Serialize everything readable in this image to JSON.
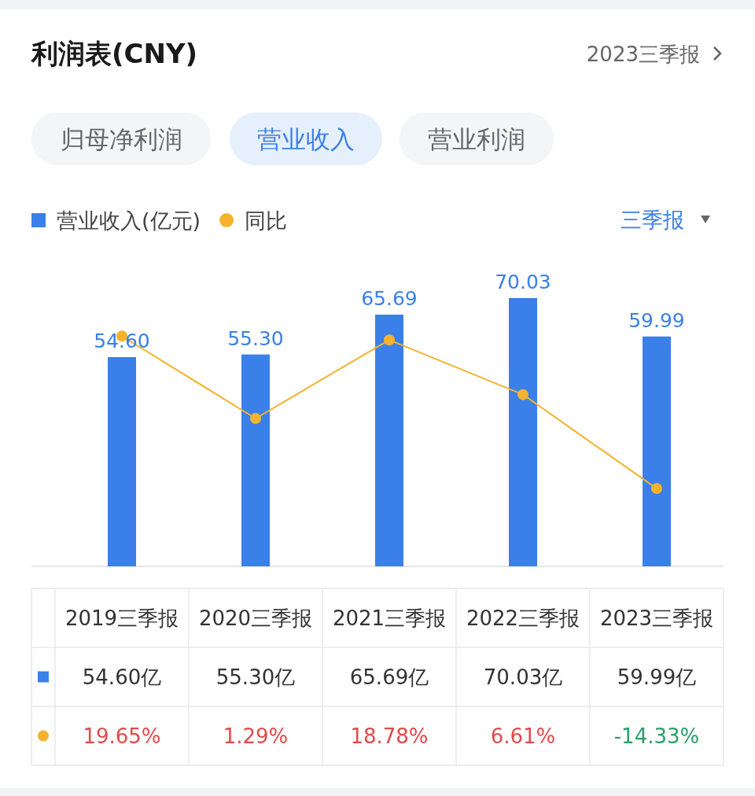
{
  "chart_data": {
    "type": "bar",
    "title": "利润表(CNY)",
    "categories": [
      "2019三季报",
      "2020三季报",
      "2021三季报",
      "2022三季报",
      "2023三季报"
    ],
    "series": [
      {
        "name": "营业收入(亿元)",
        "color": "#3a80e8",
        "values": [
          54.6,
          55.3,
          65.69,
          70.03,
          59.99
        ],
        "value_labels": [
          "54.60亿",
          "55.30亿",
          "65.69亿",
          "70.03亿",
          "59.99亿"
        ]
      },
      {
        "name": "同比",
        "type": "line",
        "axis": "y2",
        "color": "#f5b22c",
        "values": [
          19.65,
          1.29,
          18.78,
          6.61,
          -14.33
        ],
        "value_labels": [
          "19.65%",
          "1.29%",
          "18.78%",
          "6.61%",
          "-14.33%"
        ]
      }
    ],
    "legend": "top left",
    "marker": "circle",
    "annotations": [
      "2023三季报",
      "归母净利润",
      "营业收入",
      "营业利润",
      "三季报",
      {
        "text": "54.60",
        "x": "2019三季报",
        "y": 54.6
      },
      {
        "text": "55.30",
        "x": "2020三季报",
        "y": 55.3
      },
      {
        "text": "65.69",
        "x": "2021三季报",
        "y": 65.69
      },
      {
        "text": "70.03",
        "x": "2022三季报",
        "y": 70.03
      },
      {
        "text": "59.99",
        "x": "2023三季报",
        "y": 59.99
      }
    ]
  }
}
